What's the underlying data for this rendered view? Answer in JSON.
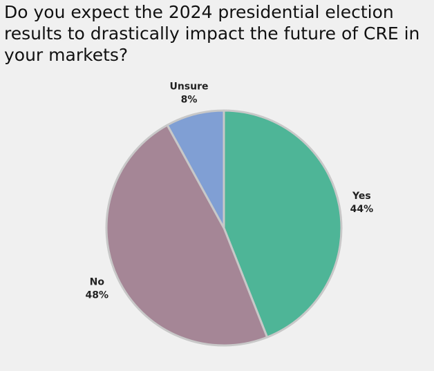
{
  "chart_data": {
    "type": "pie",
    "title": "Do you expect the 2024 presidential election results to drastically impact the future of CRE in your markets?",
    "slices": [
      {
        "name": "Yes",
        "value": 44,
        "label": "44%",
        "color": "#4eb597"
      },
      {
        "name": "No",
        "value": 48,
        "label": "48%",
        "color": "#a58696"
      },
      {
        "name": "Unsure",
        "value": 8,
        "label": "8%",
        "color": "#809fd4"
      }
    ],
    "start_angle_deg": 0,
    "direction": "clockwise",
    "legend": "none"
  }
}
